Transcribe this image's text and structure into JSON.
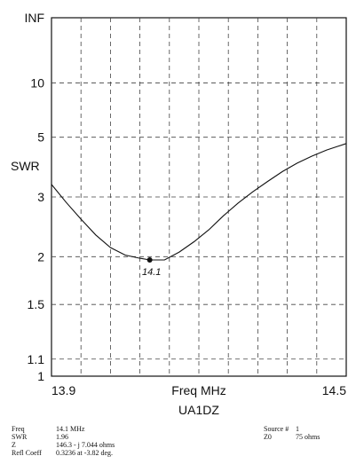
{
  "chart_data": {
    "type": "line",
    "title": "UA1DZ",
    "xlabel": "Freq MHz",
    "ylabel": "SWR",
    "xlim": [
      13.9,
      14.5
    ],
    "x_tick_labels": [
      "13.9",
      "14.5"
    ],
    "y_scale": "swr (reflection-coefficient mapped)",
    "y_ticks": [
      {
        "value": 1,
        "label": "1"
      },
      {
        "value": 1.1,
        "label": "1.1"
      },
      {
        "value": 1.5,
        "label": "1.5"
      },
      {
        "value": 2,
        "label": "2"
      },
      {
        "value": 3,
        "label": "3"
      },
      {
        "value": 5,
        "label": "5"
      },
      {
        "value": 10,
        "label": "10"
      },
      {
        "value": "inf",
        "label": "INF"
      }
    ],
    "grid": true,
    "series": [
      {
        "x": [
          13.9,
          13.93,
          13.96,
          13.99,
          14.02,
          14.05,
          14.08,
          14.1,
          14.13,
          14.16,
          14.19,
          14.22,
          14.25,
          14.28,
          14.31,
          14.34,
          14.37,
          14.4,
          14.43,
          14.46,
          14.5
        ],
        "y": [
          3.3,
          2.88,
          2.56,
          2.3,
          2.12,
          2.02,
          1.98,
          1.96,
          1.96,
          2.06,
          2.2,
          2.38,
          2.62,
          2.87,
          3.12,
          3.38,
          3.66,
          3.93,
          4.18,
          4.42,
          4.7
        ]
      }
    ],
    "marker": {
      "x": 14.1,
      "y": 1.96,
      "label": "14.1"
    }
  },
  "readout": {
    "left": [
      {
        "key": "Freq",
        "value": "14.1 MHz"
      },
      {
        "key": "SWR",
        "value": "1.96"
      },
      {
        "key": "Z",
        "value": "146.3 - j 7.044 ohms"
      },
      {
        "key": "Refl Coeff",
        "value": "0.3236 at -3.82 deg."
      }
    ],
    "right": [
      {
        "key": "Source #",
        "value": "1"
      },
      {
        "key": "Z0",
        "value": "75 ohms"
      }
    ]
  }
}
